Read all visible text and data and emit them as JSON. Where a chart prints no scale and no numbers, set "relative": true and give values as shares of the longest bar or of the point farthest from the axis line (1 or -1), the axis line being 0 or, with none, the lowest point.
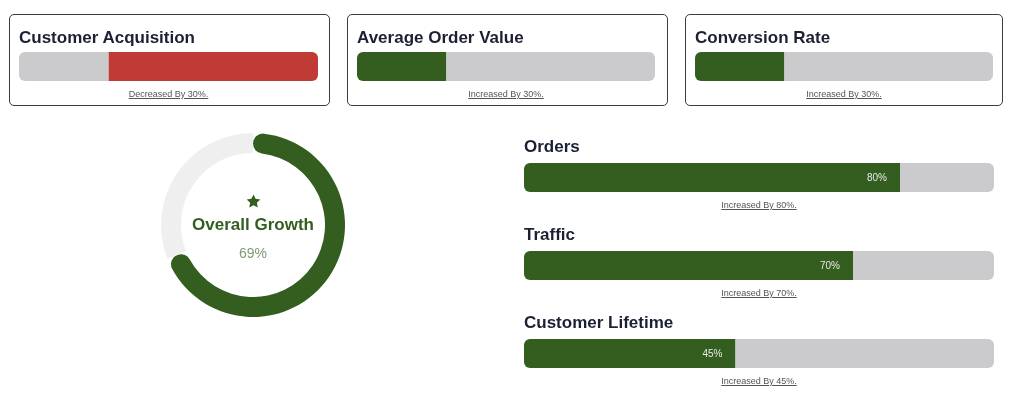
{
  "chart_data": [
    {
      "type": "bar",
      "orientation": "horizontal",
      "stacked": true,
      "relative": true,
      "title": "Customer Acquisition",
      "categories": [
        null
      ],
      "series": [
        {
          "color": "#cbcbcd",
          "values": [
            0.3
          ]
        },
        {
          "color": "#c03b35",
          "values": [
            0.7
          ]
        }
      ],
      "annotations": [
        "Decreased By 30%."
      ]
    },
    {
      "type": "bar",
      "orientation": "horizontal",
      "stacked": true,
      "relative": true,
      "title": "Average Order Value",
      "categories": [
        null
      ],
      "series": [
        {
          "color": "#345e1f",
          "values": [
            0.3
          ]
        },
        {
          "color": "#cbcbcd",
          "values": [
            0.7
          ]
        }
      ],
      "annotations": [
        "Increased By 30%."
      ]
    },
    {
      "type": "bar",
      "orientation": "horizontal",
      "stacked": true,
      "relative": true,
      "title": "Conversion Rate",
      "categories": [
        null
      ],
      "series": [
        {
          "color": "#345e1f",
          "values": [
            0.3
          ]
        },
        {
          "color": "#cbcbcd",
          "values": [
            0.7
          ]
        }
      ],
      "annotations": [
        "Increased By 30%."
      ]
    },
    {
      "type": "donut",
      "title": "Overall Growth",
      "categories": [
        null,
        null
      ],
      "values": [
        69,
        31
      ],
      "colors": [
        "#345e1f",
        "#efefef"
      ],
      "value_labels": [
        "69%",
        null
      ]
    },
    {
      "type": "bar",
      "orientation": "horizontal",
      "stacked": true,
      "title": "Orders",
      "categories": [
        null
      ],
      "xlim": [
        0,
        100
      ],
      "tick_labels": false,
      "series": [
        {
          "color": "#345e1f",
          "values": [
            80
          ],
          "value_labels": [
            "80%"
          ]
        },
        {
          "color": "#cbcbcd",
          "values": [
            20
          ]
        }
      ],
      "annotations": [
        "Increased By 80%."
      ]
    },
    {
      "type": "bar",
      "orientation": "horizontal",
      "stacked": true,
      "title": "Traffic",
      "categories": [
        null
      ],
      "xlim": [
        0,
        100
      ],
      "tick_labels": false,
      "series": [
        {
          "color": "#345e1f",
          "values": [
            70
          ],
          "value_labels": [
            "70%"
          ]
        },
        {
          "color": "#cbcbcd",
          "values": [
            30
          ]
        }
      ],
      "annotations": [
        "Increased By 70%."
      ]
    },
    {
      "type": "bar",
      "orientation": "horizontal",
      "stacked": true,
      "title": "Customer Lifetime",
      "categories": [
        null
      ],
      "xlim": [
        0,
        100
      ],
      "tick_labels": false,
      "series": [
        {
          "color": "#345e1f",
          "values": [
            45
          ],
          "value_labels": [
            "45%"
          ]
        },
        {
          "color": "#cbcbcd",
          "values": [
            55
          ]
        }
      ],
      "annotations": [
        "Increased By 45%."
      ]
    }
  ]
}
